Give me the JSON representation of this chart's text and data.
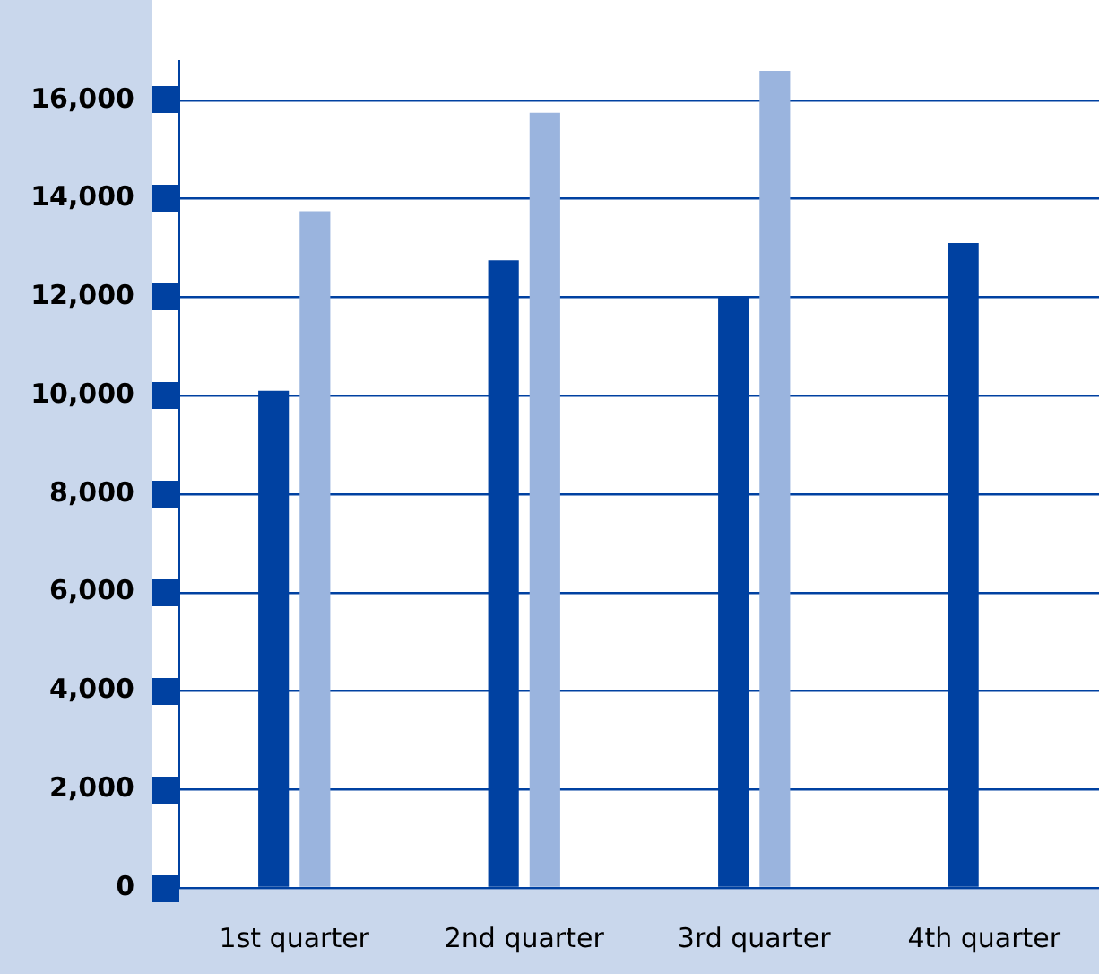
{
  "chart_data": {
    "type": "bar",
    "categories": [
      "1st quarter",
      "2nd quarter",
      "3rd quarter",
      "4th quarter"
    ],
    "series": [
      {
        "color": "#0041a1",
        "values": [
          10100,
          12750,
          12000,
          13100
        ]
      },
      {
        "color": "#9ab4de",
        "values": [
          13750,
          15750,
          16600,
          null
        ]
      }
    ],
    "ylim": [
      0,
      16800
    ],
    "yticks": [
      {
        "value": 0,
        "label": "0"
      },
      {
        "value": 2000,
        "label": "2,000"
      },
      {
        "value": 4000,
        "label": "4,000"
      },
      {
        "value": 6000,
        "label": "6,000"
      },
      {
        "value": 8000,
        "label": "8,000"
      },
      {
        "value": 10000,
        "label": "10,000"
      },
      {
        "value": 12000,
        "label": "12,000"
      },
      {
        "value": 14000,
        "label": "14,000"
      },
      {
        "value": 16000,
        "label": "16,000"
      }
    ],
    "grid": "y",
    "legend": false
  }
}
